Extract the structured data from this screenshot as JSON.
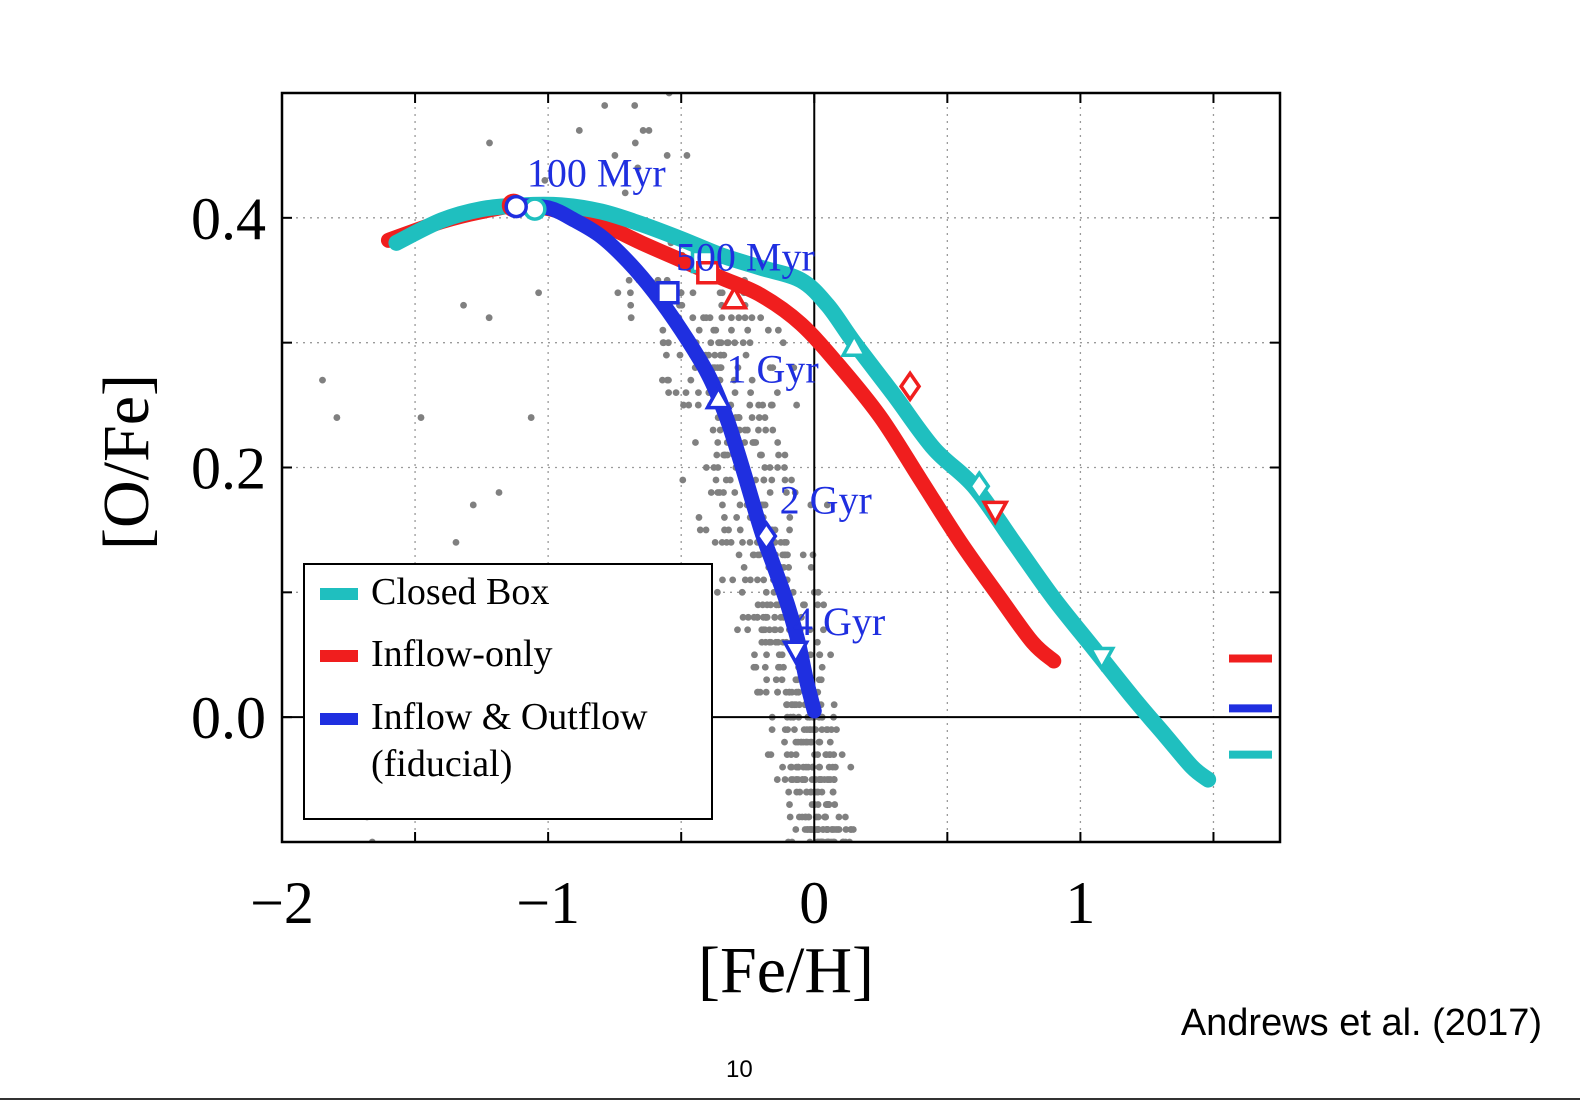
{
  "chart_data": {
    "type": "line",
    "xlabel": "[Fe/H]",
    "ylabel": "[O/Fe]",
    "xlim": [
      -2.0,
      1.75
    ],
    "ylim": [
      -0.1,
      0.5
    ],
    "xticks": [
      -2,
      -1,
      0,
      1
    ],
    "xtick_labels": [
      "−2",
      "−1",
      "0",
      "1"
    ],
    "yticks": [
      0.0,
      0.2,
      0.4
    ],
    "ytick_labels": [
      "0.0",
      "0.2",
      "0.4"
    ],
    "grid": true,
    "legend_position": "bottom-left",
    "series": [
      {
        "name": "Closed Box",
        "color": "#1fbfbf",
        "points": [
          [
            -1.57,
            0.38
          ],
          [
            -1.4,
            0.398
          ],
          [
            -1.25,
            0.407
          ],
          [
            -1.1,
            0.41
          ],
          [
            -0.95,
            0.41
          ],
          [
            -0.8,
            0.405
          ],
          [
            -0.65,
            0.395
          ],
          [
            -0.5,
            0.383
          ],
          [
            -0.35,
            0.37
          ],
          [
            -0.2,
            0.36
          ],
          [
            -0.05,
            0.35
          ],
          [
            0.05,
            0.33
          ],
          [
            0.15,
            0.3
          ],
          [
            0.3,
            0.258
          ],
          [
            0.45,
            0.215
          ],
          [
            0.6,
            0.185
          ],
          [
            0.75,
            0.14
          ],
          [
            0.9,
            0.095
          ],
          [
            1.05,
            0.055
          ],
          [
            1.2,
            0.015
          ],
          [
            1.32,
            -0.015
          ],
          [
            1.42,
            -0.04
          ],
          [
            1.48,
            -0.05
          ]
        ],
        "markers": [
          {
            "label": "100 Myr",
            "x": -1.05,
            "y": 0.407,
            "shape": "circle"
          },
          {
            "label": "500 Myr",
            "x": -0.42,
            "y": 0.365,
            "shape": "square"
          },
          {
            "label": "1 Gyr",
            "x": 0.15,
            "y": 0.297,
            "shape": "triangle-up"
          },
          {
            "label": "2 Gyr",
            "x": 0.62,
            "y": 0.185,
            "shape": "diamond"
          },
          {
            "label": "4 Gyr",
            "x": 1.08,
            "y": 0.048,
            "shape": "triangle-down"
          }
        ]
      },
      {
        "name": "Inflow-only",
        "color": "#f01e1e",
        "points": [
          [
            -1.6,
            0.382
          ],
          [
            -1.4,
            0.397
          ],
          [
            -1.25,
            0.405
          ],
          [
            -1.1,
            0.41
          ],
          [
            -0.95,
            0.405
          ],
          [
            -0.8,
            0.395
          ],
          [
            -0.65,
            0.38
          ],
          [
            -0.5,
            0.366
          ],
          [
            -0.35,
            0.352
          ],
          [
            -0.2,
            0.338
          ],
          [
            -0.05,
            0.315
          ],
          [
            0.1,
            0.28
          ],
          [
            0.25,
            0.24
          ],
          [
            0.4,
            0.19
          ],
          [
            0.55,
            0.14
          ],
          [
            0.7,
            0.095
          ],
          [
            0.82,
            0.06
          ],
          [
            0.9,
            0.045
          ]
        ],
        "markers": [
          {
            "label": "100 Myr",
            "x": -1.13,
            "y": 0.41,
            "shape": "circle"
          },
          {
            "label": "500 Myr",
            "x": -0.4,
            "y": 0.356,
            "shape": "square"
          },
          {
            "label": "1 Gyr",
            "x": -0.3,
            "y": 0.335,
            "shape": "triangle-up"
          },
          {
            "label": "2 Gyr",
            "x": 0.36,
            "y": 0.265,
            "shape": "diamond"
          },
          {
            "label": "4 Gyr",
            "x": 0.68,
            "y": 0.165,
            "shape": "triangle-down"
          }
        ]
      },
      {
        "name": "Inflow & Outflow\n(fiducial)",
        "color": "#1f2fe0",
        "points": [
          [
            -1.13,
            0.41
          ],
          [
            -1.0,
            0.408
          ],
          [
            -0.9,
            0.398
          ],
          [
            -0.8,
            0.385
          ],
          [
            -0.7,
            0.365
          ],
          [
            -0.6,
            0.34
          ],
          [
            -0.5,
            0.31
          ],
          [
            -0.4,
            0.275
          ],
          [
            -0.33,
            0.24
          ],
          [
            -0.27,
            0.2
          ],
          [
            -0.2,
            0.15
          ],
          [
            -0.15,
            0.12
          ],
          [
            -0.1,
            0.09
          ],
          [
            -0.06,
            0.06
          ],
          [
            -0.03,
            0.03
          ],
          [
            0.0,
            0.005
          ]
        ],
        "markers": [
          {
            "label": "100 Myr",
            "x": -1.12,
            "y": 0.409,
            "shape": "circle"
          },
          {
            "label": "500 Myr",
            "x": -0.55,
            "y": 0.34,
            "shape": "square"
          },
          {
            "label": "1 Gyr",
            "x": -0.36,
            "y": 0.255,
            "shape": "triangle-up"
          },
          {
            "label": "2 Gyr",
            "x": -0.18,
            "y": 0.145,
            "shape": "diamond"
          },
          {
            "label": "4 Gyr",
            "x": -0.07,
            "y": 0.053,
            "shape": "triangle-down"
          }
        ]
      }
    ],
    "time_labels": [
      {
        "text": "100 Myr",
        "x": -1.08,
        "y": 0.425
      },
      {
        "text": "500 Myr",
        "x": -0.52,
        "y": 0.358
      },
      {
        "text": "1 Gyr",
        "x": -0.33,
        "y": 0.268
      },
      {
        "text": "2 Gyr",
        "x": -0.13,
        "y": 0.163
      },
      {
        "text": "4 Gyr",
        "x": -0.08,
        "y": 0.066
      }
    ],
    "right_ticks": [
      {
        "color": "#f01e1e",
        "y": 0.047
      },
      {
        "color": "#1f2fe0",
        "y": 0.007
      },
      {
        "color": "#1fbfbf",
        "y": -0.03
      }
    ],
    "scatter": {
      "name": "observed stars",
      "color": "#808080",
      "count": 620
    }
  },
  "credit": "Andrews et al. (2017)",
  "page_number": "10"
}
